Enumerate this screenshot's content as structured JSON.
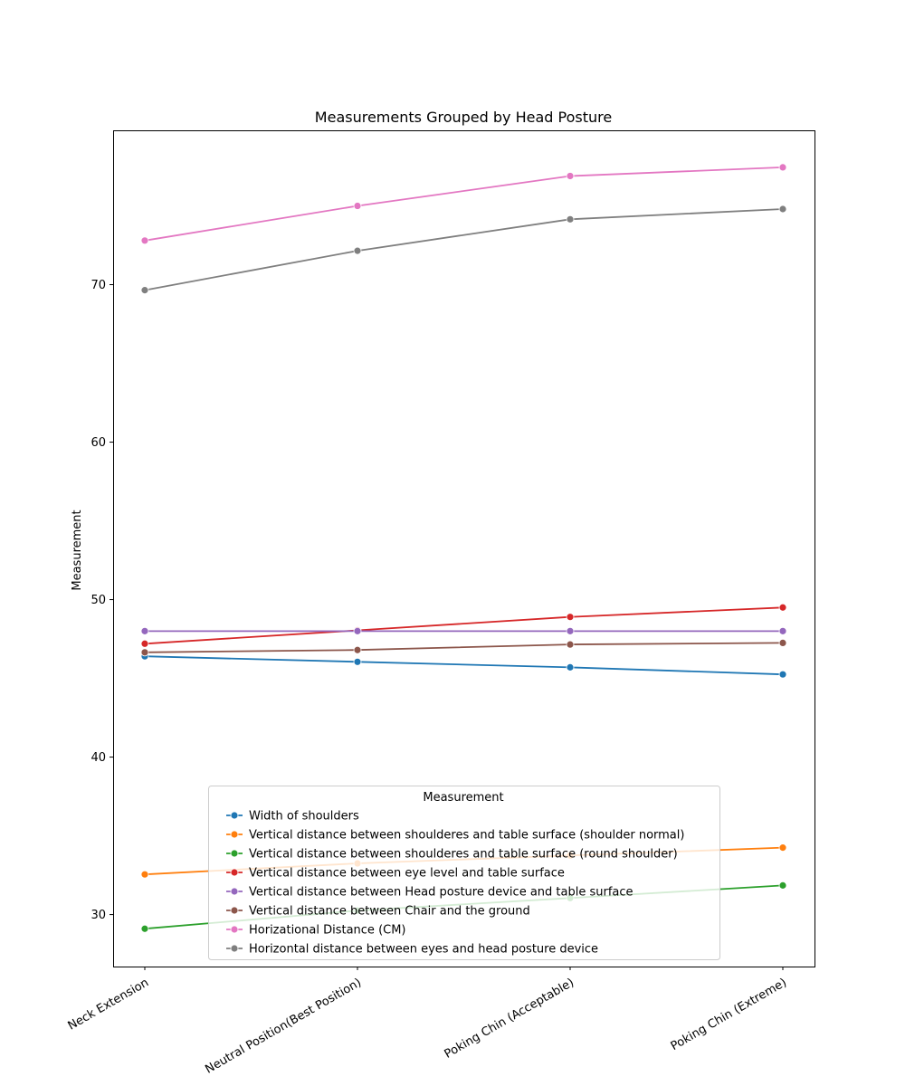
{
  "chart_data": {
    "type": "line",
    "title": "Measurements Grouped by Head Posture",
    "xlabel": "",
    "ylabel": "Measurement",
    "categories": [
      "Neck Extension",
      "Neutral Position(Best Position)",
      "Poking Chin (Acceptable)",
      "Poking Chin (Extreme)"
    ],
    "ylim": [
      26.7,
      79.8
    ],
    "yticks": [
      30,
      40,
      50,
      60,
      70
    ],
    "grid": false,
    "legend": {
      "title": "Measurement",
      "placement": "lower-center"
    },
    "series": [
      {
        "name": "Width of shoulders",
        "color": "#1f77b4",
        "values": [
          46.4,
          46.05,
          45.7,
          45.25
        ]
      },
      {
        "name": "Vertical distance between shoulderes and table surface (shoulder normal)",
        "color": "#ff7f0e",
        "values": [
          32.55,
          33.25,
          33.75,
          34.25
        ]
      },
      {
        "name": "Vertical distance between shoulderes and table surface (round shoulder)",
        "color": "#2ca02c",
        "values": [
          29.1,
          30.25,
          31.05,
          31.85
        ]
      },
      {
        "name": "Vertical distance between eye level and table surface",
        "color": "#d62728",
        "values": [
          47.2,
          48.05,
          48.9,
          49.5
        ]
      },
      {
        "name": "Vertical distance between Head posture device and table surface",
        "color": "#9467bd",
        "values": [
          48.0,
          48.0,
          48.0,
          48.0
        ]
      },
      {
        "name": "Vertical distance between Chair and the ground",
        "color": "#8c564b",
        "values": [
          46.65,
          46.8,
          47.15,
          47.25
        ]
      },
      {
        "name": "Horizational Distance (CM)",
        "color": "#e377c2",
        "values": [
          72.8,
          75.0,
          76.9,
          77.45
        ]
      },
      {
        "name": "Horizontal distance between eyes and head posture device",
        "color": "#7f7f7f",
        "values": [
          69.65,
          72.15,
          74.15,
          74.8
        ]
      }
    ]
  }
}
